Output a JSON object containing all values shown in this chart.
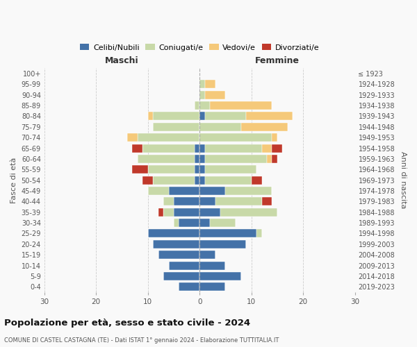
{
  "age_groups": [
    "0-4",
    "5-9",
    "10-14",
    "15-19",
    "20-24",
    "25-29",
    "30-34",
    "35-39",
    "40-44",
    "45-49",
    "50-54",
    "55-59",
    "60-64",
    "65-69",
    "70-74",
    "75-79",
    "80-84",
    "85-89",
    "90-94",
    "95-99",
    "100+"
  ],
  "birth_years": [
    "2019-2023",
    "2014-2018",
    "2009-2013",
    "2004-2008",
    "1999-2003",
    "1994-1998",
    "1989-1993",
    "1984-1988",
    "1979-1983",
    "1974-1978",
    "1969-1973",
    "1964-1968",
    "1959-1963",
    "1954-1958",
    "1949-1953",
    "1944-1948",
    "1939-1943",
    "1934-1938",
    "1929-1933",
    "1924-1928",
    "≤ 1923"
  ],
  "male": {
    "celibi": [
      4,
      7,
      6,
      8,
      9,
      10,
      4,
      5,
      5,
      6,
      1,
      1,
      1,
      1,
      0,
      0,
      0,
      0,
      0,
      0,
      0
    ],
    "coniugati": [
      0,
      0,
      0,
      0,
      0,
      0,
      1,
      2,
      2,
      4,
      8,
      9,
      11,
      10,
      12,
      9,
      9,
      1,
      0,
      0,
      0
    ],
    "vedovi": [
      0,
      0,
      0,
      0,
      0,
      0,
      0,
      0,
      0,
      0,
      0,
      0,
      0,
      0,
      2,
      0,
      1,
      0,
      0,
      0,
      0
    ],
    "divorziati": [
      0,
      0,
      0,
      0,
      0,
      0,
      0,
      1,
      0,
      0,
      2,
      3,
      0,
      2,
      0,
      0,
      0,
      0,
      0,
      0,
      0
    ]
  },
  "female": {
    "nubili": [
      5,
      8,
      5,
      3,
      9,
      11,
      2,
      4,
      3,
      5,
      1,
      1,
      1,
      1,
      0,
      0,
      1,
      0,
      0,
      0,
      0
    ],
    "coniugate": [
      0,
      0,
      0,
      0,
      0,
      1,
      5,
      11,
      9,
      9,
      9,
      10,
      12,
      11,
      14,
      8,
      8,
      2,
      1,
      1,
      0
    ],
    "vedove": [
      0,
      0,
      0,
      0,
      0,
      0,
      0,
      0,
      0,
      0,
      0,
      0,
      1,
      2,
      1,
      9,
      9,
      12,
      4,
      2,
      0
    ],
    "divorziate": [
      0,
      0,
      0,
      0,
      0,
      0,
      0,
      0,
      2,
      0,
      2,
      0,
      1,
      2,
      0,
      0,
      0,
      0,
      0,
      0,
      0
    ]
  },
  "colors": {
    "celibi": "#4472a8",
    "coniugati": "#c8d9a8",
    "vedovi": "#f5c97a",
    "divorziati": "#c0392b"
  },
  "xlim": 30,
  "title": "Popolazione per età, sesso e stato civile - 2024",
  "subtitle": "COMUNE DI CASTEL CASTAGNA (TE) - Dati ISTAT 1° gennaio 2024 - Elaborazione TUTTITALIA.IT",
  "ylabel_left": "Fasce di età",
  "ylabel_right": "Anni di nascita",
  "xlabel_left": "Maschi",
  "xlabel_right": "Femmine",
  "bg_color": "#f9f9f9",
  "grid_color": "#cccccc"
}
